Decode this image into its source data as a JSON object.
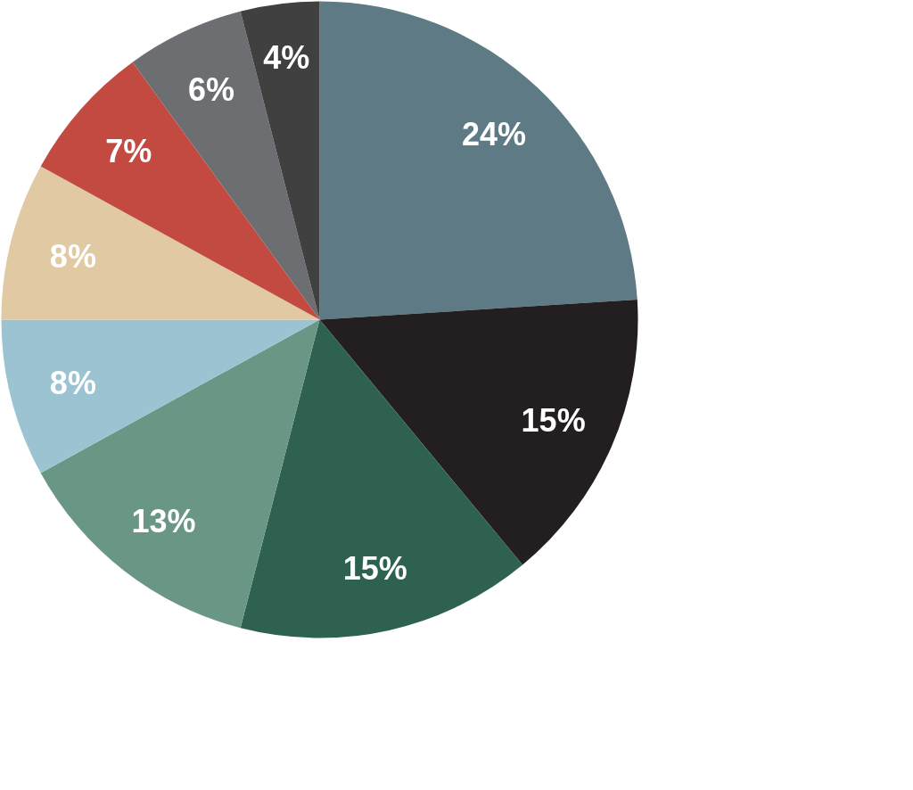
{
  "chart_data": {
    "type": "pie",
    "categories": [
      null,
      null,
      null,
      null,
      null,
      null,
      null,
      null,
      null
    ],
    "values": [
      24,
      15,
      15,
      13,
      8,
      8,
      7,
      6,
      4
    ],
    "value_labels": [
      "24%",
      "15%",
      "15%",
      "13%",
      "8%",
      "8%",
      "7%",
      "6%",
      "4%"
    ],
    "colors": [
      "#5d7a85",
      "#231f20",
      "#2f6150",
      "#6a9785",
      "#9cc3d2",
      "#e0c9a3",
      "#c34a40",
      "#6d6e71",
      "#404040"
    ]
  }
}
